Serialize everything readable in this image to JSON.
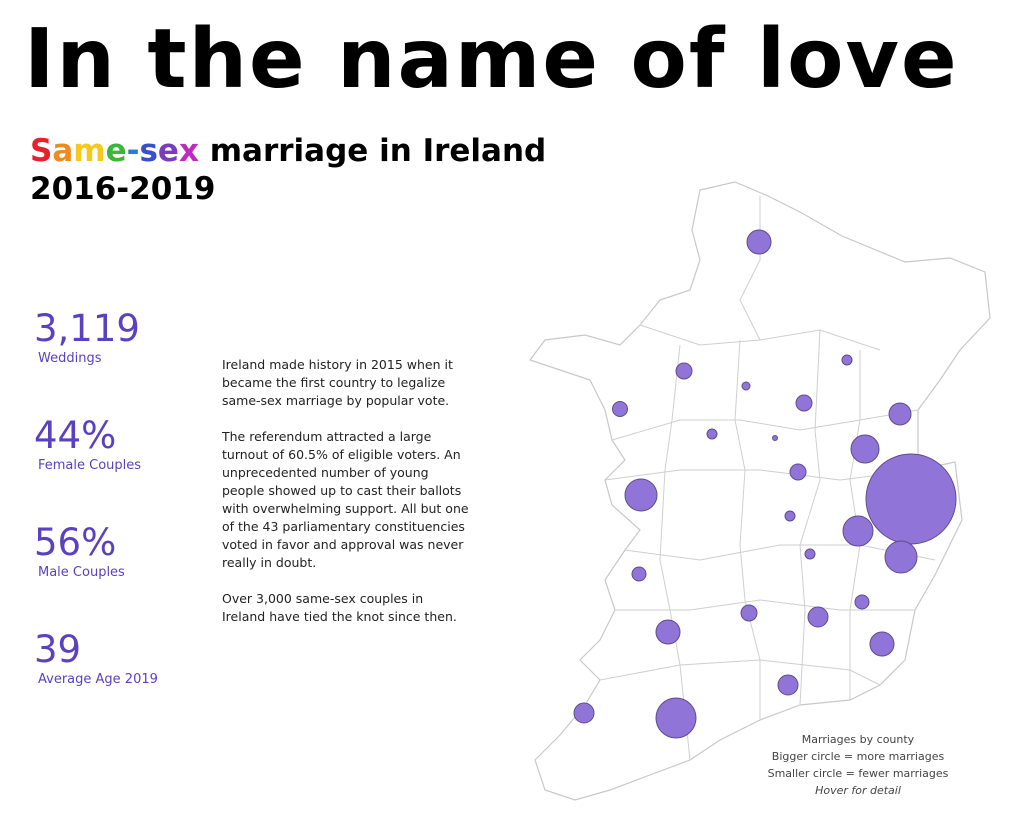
{
  "title": "In the name of love",
  "subtitle": {
    "rainbow_word": [
      {
        "ch": "S",
        "color": "#e8202a"
      },
      {
        "ch": "a",
        "color": "#f08a1c"
      },
      {
        "ch": "m",
        "color": "#f4c81c"
      },
      {
        "ch": "e",
        "color": "#3bb83b"
      },
      {
        "ch": "-",
        "color": "#2a7ad8"
      },
      {
        "ch": "s",
        "color": "#3a4fd0"
      },
      {
        "ch": "e",
        "color": "#7a3bc0"
      },
      {
        "ch": "x",
        "color": "#c02ac0"
      }
    ],
    "rest_line1": " marriage in Ireland",
    "line2": "2016-2019"
  },
  "stats": [
    {
      "value": "3,119",
      "label": "Weddings"
    },
    {
      "value": "44%",
      "label": "Female Couples"
    },
    {
      "value": "56%",
      "label": "Male Couples"
    },
    {
      "value": "39",
      "label": "Average Age 2019"
    }
  ],
  "blurb": [
    "Ireland made history in 2015 when it became the first country to legalize same-sex marriage by popular vote.",
    "The referendum attracted a large turnout of 60.5% of eligible voters. An unprecedented number of young people showed up to cast their ballots with overwhelming support. All but one of the 43 parliamentary constituencies voted in favor and approval was never really in doubt.",
    "Over 3,000 same-sex couples in Ireland have tied the knot since then."
  ],
  "legend": {
    "line1": "Marriages by county",
    "line2": "Bigger circle = more marriages",
    "line3": "Smaller circle = fewer marriages",
    "line4": "Hover for detail"
  },
  "colors": {
    "accent": "#5a41c0",
    "bubble_fill": "#8f72d8",
    "bubble_stroke": "#5a4a8a",
    "map_border": "#c8c8c8"
  }
}
